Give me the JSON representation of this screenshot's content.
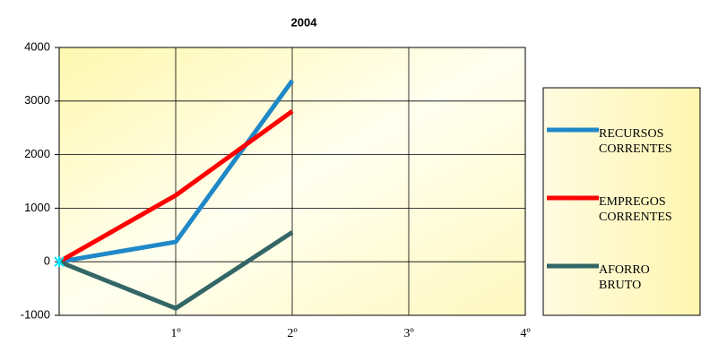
{
  "chart_data": {
    "type": "line",
    "title": "2004",
    "categories": [
      null,
      "1º",
      "2º",
      "3º",
      "4º"
    ],
    "series": [
      {
        "name": "RECURSOS CORRENTES",
        "color": "#1f88c8",
        "values": [
          0,
          370,
          3380,
          null,
          null
        ]
      },
      {
        "name": "EMPREGOS CORRENTES",
        "color": "#ff0000",
        "values": [
          0,
          1240,
          2810,
          null,
          null
        ]
      },
      {
        "name": "AFORRO BRUTO",
        "color": "#336666",
        "values": [
          0,
          -870,
          550,
          null,
          null
        ]
      }
    ],
    "ylim": [
      -1000,
      4000
    ],
    "yticks": [
      -1000,
      0,
      1000,
      2000,
      3000,
      4000
    ],
    "grid": true,
    "legend": "right"
  }
}
